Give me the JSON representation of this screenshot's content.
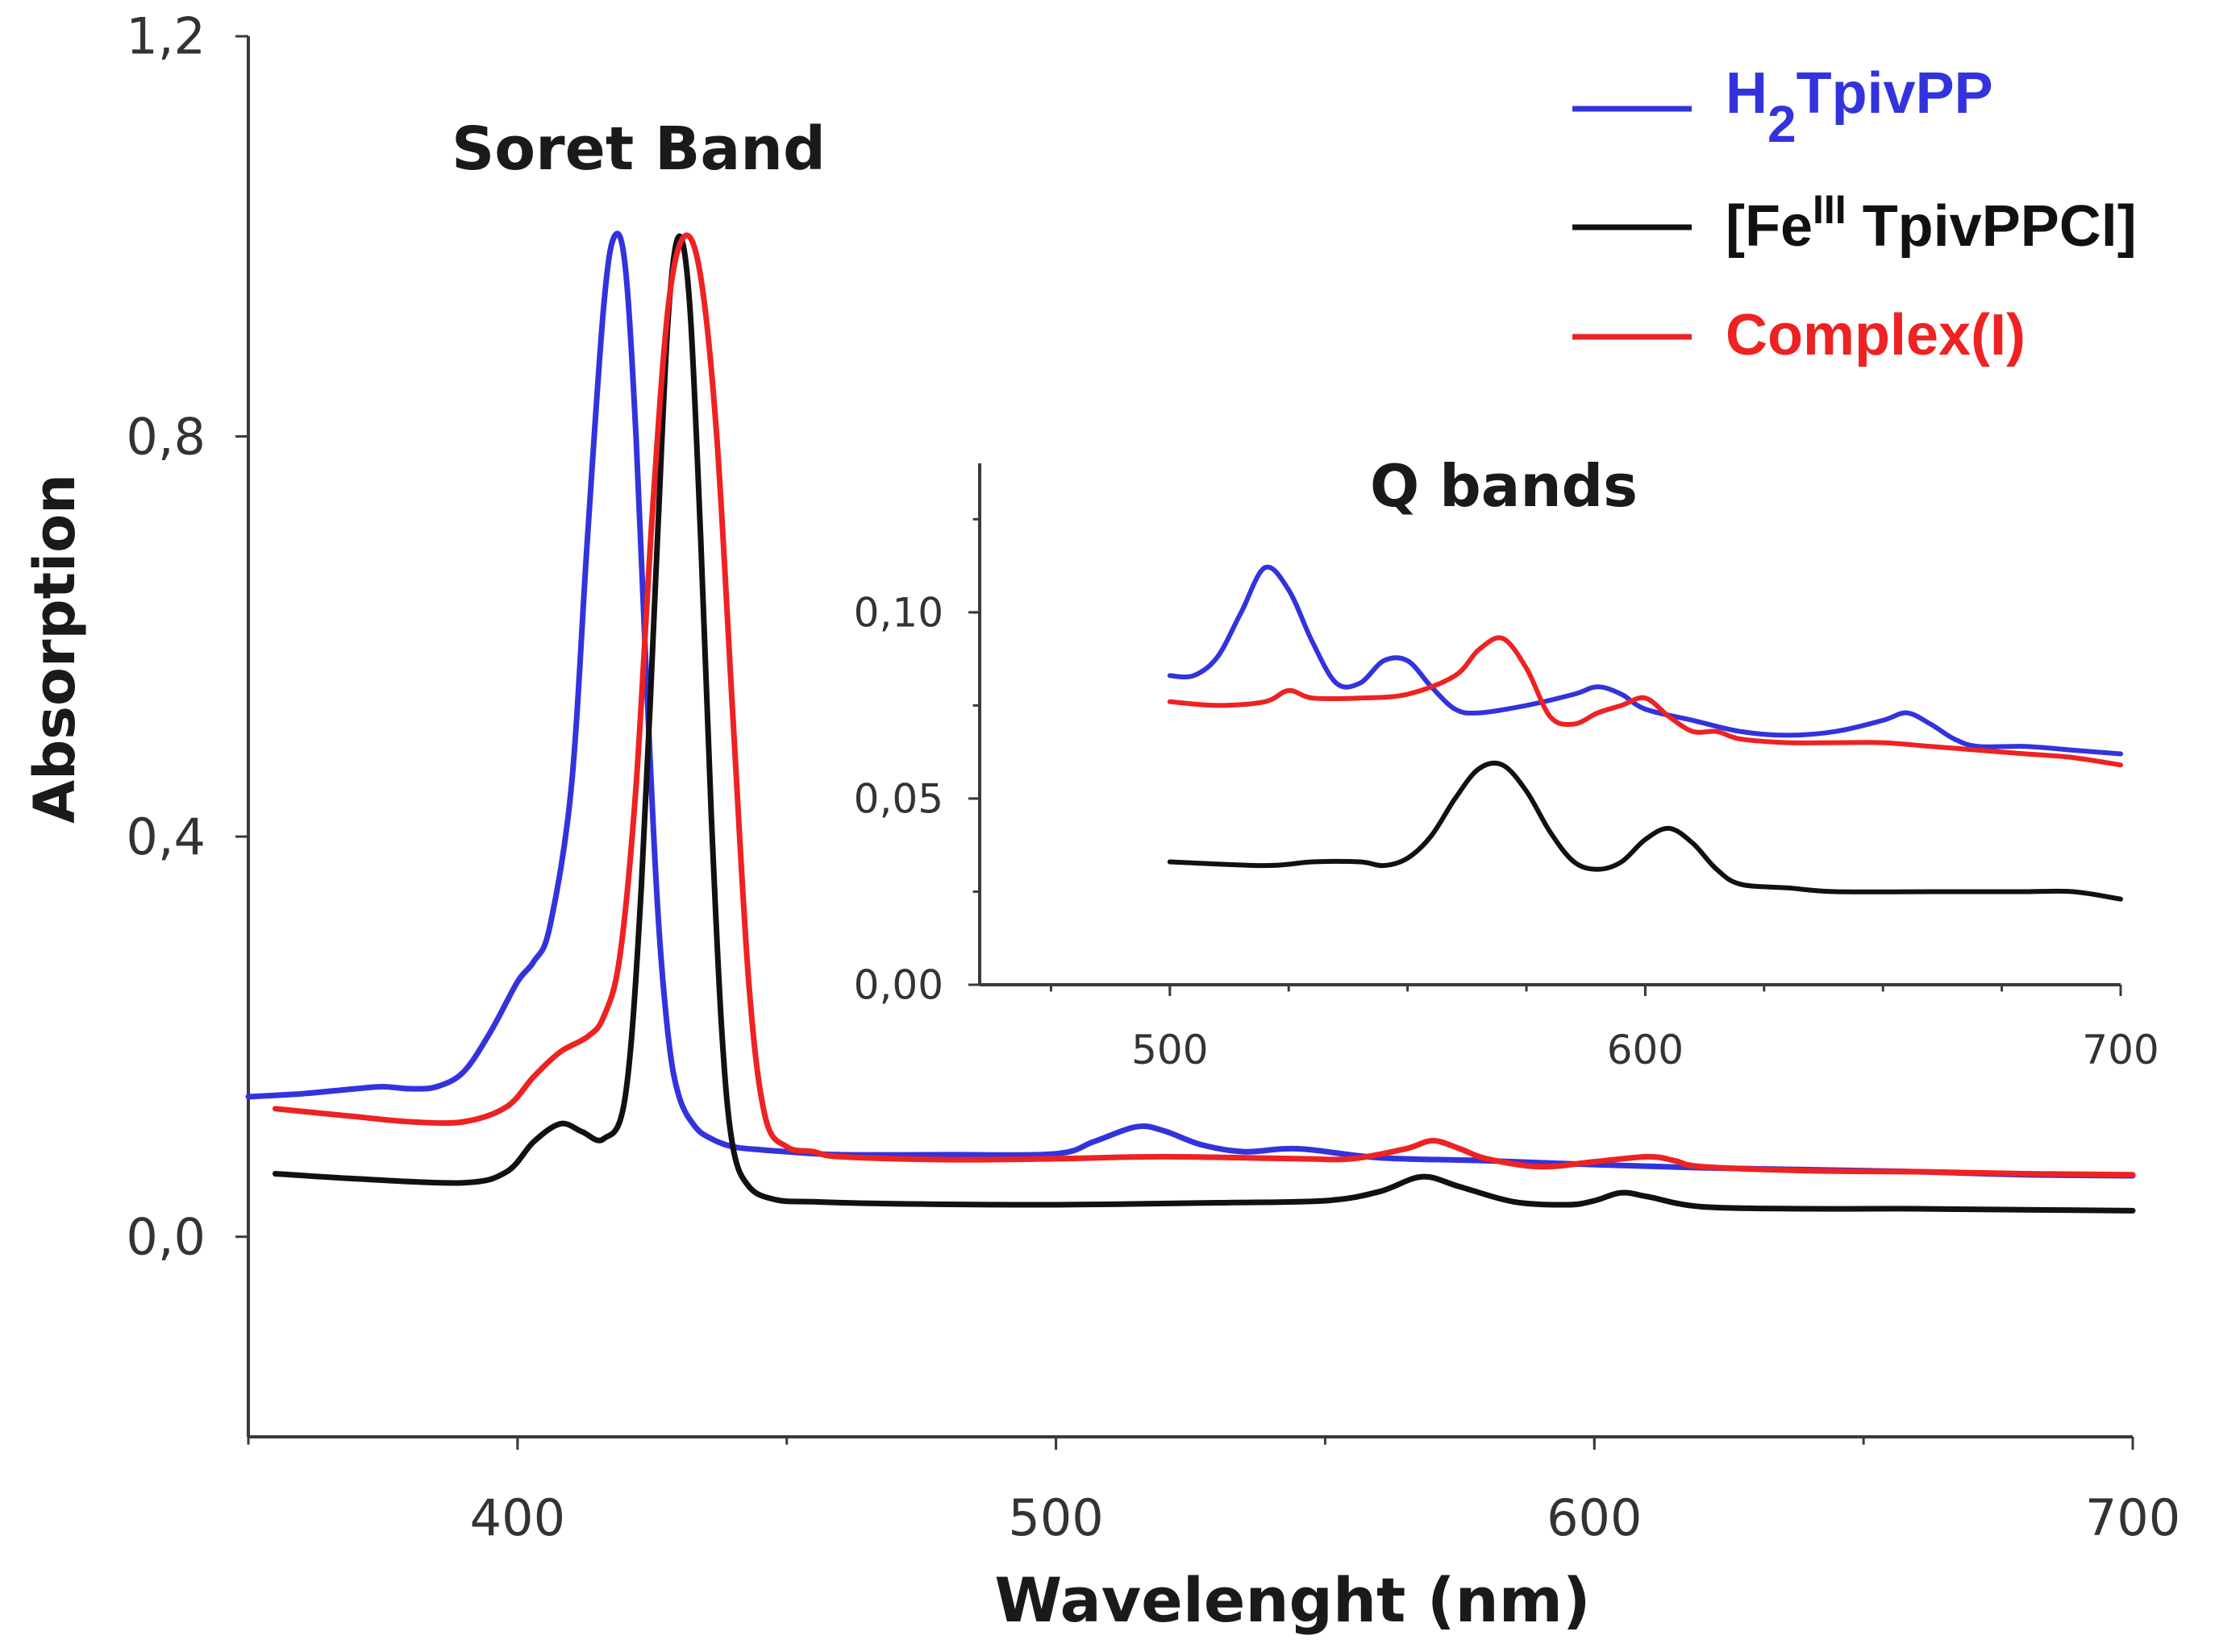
{
  "chart_data": [
    {
      "type": "line",
      "panel": "main",
      "xlabel": "Wavelenght (nm)",
      "ylabel": "Absorption",
      "xlim": [
        350,
        700
      ],
      "ylim": [
        -0.2,
        1.2
      ],
      "x_ticks": [
        400,
        500,
        600,
        700
      ],
      "x_tick_labels": [
        "400",
        "500",
        "600",
        "700"
      ],
      "y_ticks": [
        0.0,
        0.4,
        0.8,
        1.2
      ],
      "y_tick_labels": [
        "0,0",
        "0,4",
        "0,8",
        "1,2"
      ],
      "annotation": "Soret Band",
      "legend": [
        {
          "main": "H",
          "sub": "2",
          "rest": "TpivPP",
          "color": "#3333dd"
        },
        {
          "main": "[Fe",
          "sup": "III",
          "rest": " TpivPPCl]",
          "color": "#111111"
        },
        {
          "main": "Complex(I)",
          "color": "#ee2222"
        }
      ],
      "series": [
        {
          "name": "H2TpivPP",
          "color": "#3333dd",
          "x": [
            350,
            360,
            370,
            375,
            380,
            385,
            390,
            395,
            400,
            403,
            406,
            410,
            413,
            416,
            418,
            420,
            422,
            424,
            426,
            428,
            430,
            433,
            436,
            440,
            445,
            450,
            460,
            480,
            500,
            507,
            515,
            520,
            527,
            535,
            545,
            560,
            580,
            600,
            620,
            640,
            660,
            680,
            700
          ],
          "y": [
            0.14,
            0.143,
            0.148,
            0.15,
            0.148,
            0.15,
            0.165,
            0.205,
            0.255,
            0.275,
            0.31,
            0.45,
            0.7,
            0.93,
            1.0,
            0.97,
            0.8,
            0.55,
            0.33,
            0.2,
            0.14,
            0.11,
            0.098,
            0.09,
            0.087,
            0.085,
            0.082,
            0.082,
            0.083,
            0.095,
            0.11,
            0.106,
            0.092,
            0.085,
            0.088,
            0.079,
            0.076,
            0.072,
            0.069,
            0.067,
            0.065,
            0.062,
            0.061
          ]
        },
        {
          "name": "[FeIII TpivPPCl]",
          "color": "#111111",
          "x": [
            355,
            370,
            390,
            398,
            403,
            408,
            412,
            416,
            420,
            423,
            426,
            428,
            430,
            432,
            434,
            436,
            438,
            440,
            443,
            448,
            455,
            470,
            500,
            530,
            550,
            560,
            568,
            575,
            585,
            595,
            600,
            605,
            610,
            620,
            640,
            660,
            680,
            700
          ],
          "y": [
            0.063,
            0.058,
            0.054,
            0.065,
            0.095,
            0.113,
            0.105,
            0.098,
            0.14,
            0.35,
            0.7,
            0.92,
            1.0,
            0.93,
            0.7,
            0.42,
            0.2,
            0.09,
            0.05,
            0.037,
            0.035,
            0.033,
            0.032,
            0.034,
            0.036,
            0.045,
            0.06,
            0.05,
            0.035,
            0.032,
            0.036,
            0.044,
            0.04,
            0.03,
            0.028,
            0.028,
            0.027,
            0.026
          ]
        },
        {
          "name": "Complex(I)",
          "color": "#ee2222",
          "x": [
            355,
            370,
            380,
            390,
            398,
            403,
            408,
            413,
            416,
            419,
            422,
            425,
            428,
            431,
            434,
            437,
            440,
            443,
            446,
            450,
            455,
            460,
            480,
            500,
            520,
            545,
            555,
            565,
            570,
            575,
            580,
            590,
            600,
            610,
            615,
            620,
            640,
            660,
            680,
            700
          ],
          "y": [
            0.128,
            0.12,
            0.115,
            0.115,
            0.13,
            0.16,
            0.185,
            0.2,
            0.22,
            0.28,
            0.45,
            0.72,
            0.93,
            1.0,
            0.96,
            0.8,
            0.52,
            0.25,
            0.12,
            0.09,
            0.085,
            0.08,
            0.077,
            0.078,
            0.08,
            0.078,
            0.078,
            0.088,
            0.096,
            0.088,
            0.078,
            0.07,
            0.075,
            0.08,
            0.076,
            0.07,
            0.066,
            0.065,
            0.063,
            0.062
          ]
        }
      ]
    },
    {
      "type": "line",
      "panel": "inset",
      "title": "Q bands",
      "xlim": [
        460,
        700
      ],
      "ylim": [
        0.0,
        0.14
      ],
      "x_ticks": [
        500,
        600,
        700
      ],
      "x_tick_labels": [
        "500",
        "600",
        "700"
      ],
      "y_ticks": [
        0.0,
        0.05,
        0.1
      ],
      "y_tick_labels": [
        "0,00",
        "0,05",
        "0,10"
      ],
      "series": [
        {
          "name": "H2TpivPP",
          "color": "#3333dd",
          "x": [
            500,
            505,
            510,
            515,
            520,
            525,
            530,
            535,
            540,
            545,
            550,
            555,
            560,
            565,
            575,
            585,
            590,
            595,
            600,
            610,
            620,
            630,
            640,
            650,
            655,
            660,
            665,
            670,
            680,
            690,
            700
          ],
          "y": [
            0.083,
            0.083,
            0.088,
            0.1,
            0.112,
            0.106,
            0.092,
            0.081,
            0.081,
            0.087,
            0.087,
            0.08,
            0.074,
            0.073,
            0.075,
            0.078,
            0.08,
            0.078,
            0.074,
            0.071,
            0.068,
            0.067,
            0.068,
            0.071,
            0.073,
            0.07,
            0.066,
            0.064,
            0.064,
            0.063,
            0.062
          ]
        },
        {
          "name": "[FeIII TpivPPCl]",
          "color": "#111111",
          "x": [
            500,
            520,
            530,
            540,
            545,
            550,
            555,
            560,
            565,
            570,
            575,
            580,
            585,
            590,
            595,
            600,
            605,
            610,
            615,
            620,
            630,
            640,
            660,
            670,
            680,
            690,
            700
          ],
          "y": [
            0.033,
            0.032,
            0.033,
            0.033,
            0.032,
            0.034,
            0.04,
            0.05,
            0.058,
            0.059,
            0.052,
            0.041,
            0.033,
            0.031,
            0.033,
            0.039,
            0.042,
            0.038,
            0.031,
            0.027,
            0.026,
            0.025,
            0.025,
            0.025,
            0.025,
            0.025,
            0.023
          ]
        },
        {
          "name": "Complex(I)",
          "color": "#ee2222",
          "x": [
            500,
            510,
            520,
            525,
            530,
            540,
            550,
            560,
            565,
            570,
            575,
            580,
            585,
            590,
            595,
            600,
            605,
            610,
            615,
            620,
            630,
            640,
            650,
            660,
            670,
            680,
            690,
            700
          ],
          "y": [
            0.076,
            0.075,
            0.076,
            0.079,
            0.077,
            0.077,
            0.078,
            0.083,
            0.09,
            0.093,
            0.085,
            0.072,
            0.07,
            0.073,
            0.075,
            0.077,
            0.072,
            0.068,
            0.068,
            0.066,
            0.065,
            0.065,
            0.065,
            0.064,
            0.063,
            0.062,
            0.061,
            0.059
          ]
        }
      ]
    }
  ]
}
